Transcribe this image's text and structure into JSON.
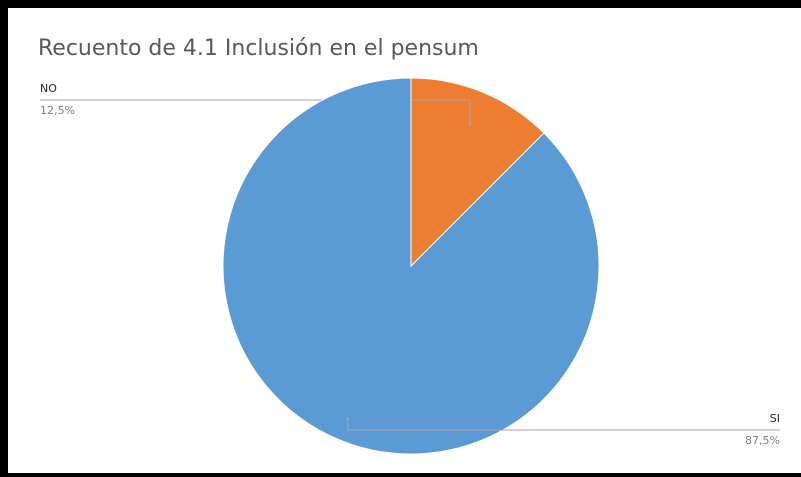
{
  "chart_data": {
    "type": "pie",
    "title": "Recuento de 4.1 Inclusión en el pensum",
    "slices": [
      {
        "label": "NO",
        "value": 12.5,
        "value_label": "12,5%",
        "color": "#ED7D31"
      },
      {
        "label": "SI",
        "value": 87.5,
        "value_label": "87,5%",
        "color": "#5B9BD5"
      }
    ],
    "start_angle_deg": 0,
    "direction": "clockwise",
    "legend": "none"
  }
}
